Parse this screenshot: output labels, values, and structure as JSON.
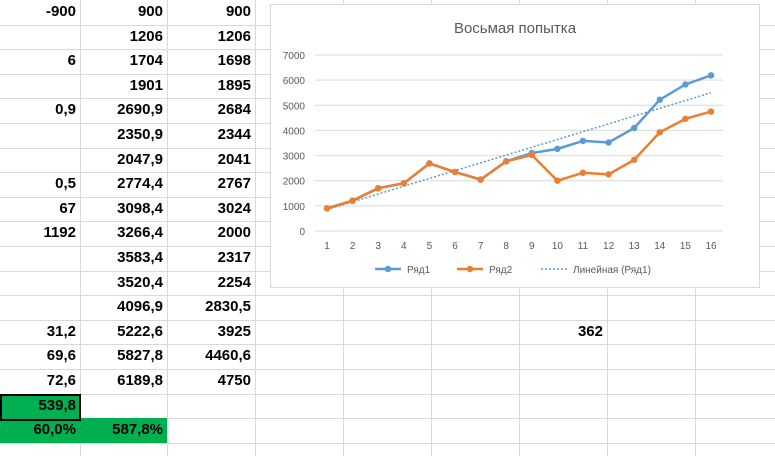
{
  "sheet": {
    "rows": [
      {
        "a": "-900",
        "b": "900",
        "c": "900"
      },
      {
        "a": "",
        "b": "1206",
        "c": "1206"
      },
      {
        "a": "6",
        "b": "1704",
        "c": "1698"
      },
      {
        "a": "",
        "b": "1901",
        "c": "1895"
      },
      {
        "a": "0,9",
        "b": "2690,9",
        "c": "2684"
      },
      {
        "a": "",
        "b": "2350,9",
        "c": "2344"
      },
      {
        "a": "",
        "b": "2047,9",
        "c": "2041"
      },
      {
        "a": "0,5",
        "b": "2774,4",
        "c": "2767"
      },
      {
        "a": "67",
        "b": "3098,4",
        "c": "3024"
      },
      {
        "a": "1192",
        "b": "3266,4",
        "c": "2000"
      },
      {
        "a": "",
        "b": "3583,4",
        "c": "2317"
      },
      {
        "a": "",
        "b": "3520,4",
        "c": "2254"
      },
      {
        "a": "",
        "b": "4096,9",
        "c": "2830,5"
      },
      {
        "a": "31,2",
        "b": "5222,6",
        "c": "3925"
      },
      {
        "a": "69,6",
        "b": "5827,8",
        "c": "4460,6"
      },
      {
        "a": "72,6",
        "b": "6189,8",
        "c": "4750"
      },
      {
        "a": "539,8",
        "b": "",
        "c": ""
      },
      {
        "a": "60,0%",
        "b": "587,8%",
        "c": ""
      }
    ],
    "extra_cell": "362",
    "highlight_color": "#00b050"
  },
  "chart_data": {
    "type": "line",
    "title": "Восьмая попытка",
    "categories": [
      "1",
      "2",
      "3",
      "4",
      "5",
      "6",
      "7",
      "8",
      "9",
      "10",
      "11",
      "12",
      "13",
      "14",
      "15",
      "16"
    ],
    "ylim": [
      0,
      7000
    ],
    "yticks": [
      "0",
      "1000",
      "2000",
      "3000",
      "4000",
      "5000",
      "6000",
      "7000"
    ],
    "series": [
      {
        "name": "Ряд1",
        "color": "#5b9bd5",
        "values": [
          900,
          1206,
          1704,
          1901,
          2690.9,
          2350.9,
          2047.9,
          2774.4,
          3098.4,
          3266.4,
          3583.4,
          3520.4,
          4096.9,
          5222.6,
          5827.8,
          6189.8
        ]
      },
      {
        "name": "Ряд2",
        "color": "#ed7d31",
        "values": [
          900,
          1206,
          1698,
          1895,
          2684,
          2344,
          2041,
          2767,
          3024,
          2000,
          2317,
          2254,
          2830.5,
          3925,
          4460.6,
          4750
        ]
      }
    ],
    "trendline": {
      "name": "Линейная (Ряд1)",
      "color": "#5b9bd5",
      "start": 850,
      "end": 5500
    },
    "legend_position": "bottom",
    "grid": true
  }
}
